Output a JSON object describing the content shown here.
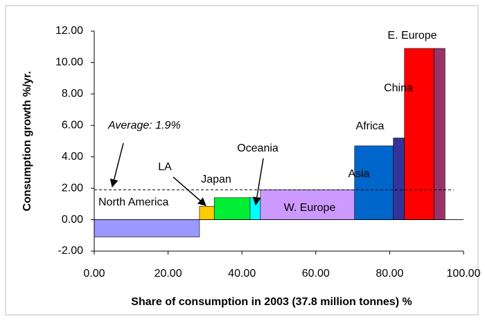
{
  "chart_data": {
    "type": "variable-width-bar",
    "x_label": "Share of consumption in 2003 (37.8 million tonnes) %",
    "y_label": "Consumption growth %/yr.",
    "categories": [
      "North America",
      "LA",
      "Japan",
      "Oceania",
      "W. Europe",
      "Asia",
      "Africa",
      "China",
      "E. Europe"
    ],
    "widths": [
      28.5,
      4,
      9.7,
      2.8,
      25.5,
      10.5,
      3,
      8,
      3
    ],
    "values": [
      -1.1,
      0.85,
      1.4,
      1.4,
      1.9,
      4.7,
      5.2,
      10.9,
      10.9
    ],
    "colors": [
      "#9999ff",
      "#ffcc00",
      "#00ee33",
      "#00ffff",
      "#cc99ff",
      "#0066cc",
      "#333399",
      "#ff0000",
      "#993366"
    ],
    "average": {
      "value": 1.9,
      "label": "Average: 1.9%"
    },
    "xlim": [
      0,
      100
    ],
    "xticks": [
      {
        "value": 0,
        "label": "0.00"
      },
      {
        "value": 20,
        "label": "20.00"
      },
      {
        "value": 40,
        "label": "40.00"
      },
      {
        "value": 60,
        "label": "60.00"
      },
      {
        "value": 80,
        "label": "80.00"
      },
      {
        "value": 100,
        "label": "100.00"
      }
    ],
    "ylim": [
      -2,
      12
    ],
    "yticks": [
      {
        "value": -2,
        "label": "-2.00"
      },
      {
        "value": 0,
        "label": "0.00"
      },
      {
        "value": 2,
        "label": "2.00"
      },
      {
        "value": 4,
        "label": "4.00"
      },
      {
        "value": 6,
        "label": "6.00"
      },
      {
        "value": 8,
        "label": "8.00"
      },
      {
        "value": 10,
        "label": "10.00"
      },
      {
        "value": 12,
        "label": "12.00"
      }
    ]
  }
}
